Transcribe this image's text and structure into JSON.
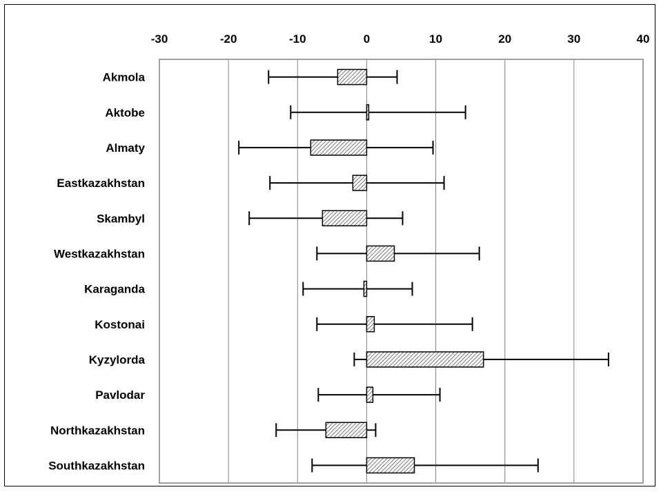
{
  "chart_data": {
    "type": "bar",
    "orientation": "horizontal",
    "title": "",
    "xlabel": "",
    "ylabel": "",
    "xlim": [
      -30,
      40
    ],
    "x_ticks": [
      -30,
      -20,
      -10,
      0,
      10,
      20,
      30,
      40
    ],
    "x_tick_labels": [
      "-30",
      "-20",
      "-10",
      "0",
      "10",
      "20",
      "30",
      "40"
    ],
    "x_axis_position": "top",
    "grid": "vertical",
    "legend": "none",
    "bar_fill": "diagonal-hatch",
    "categories": [
      "Akmola",
      "Aktobe",
      "Almaty",
      "Eastkazakhstan",
      "Skambyl",
      "Westkazakhstan",
      "Karaganda",
      "Kostonai",
      "Kyzylorda",
      "Pavlodar",
      "Northkazakhstan",
      "Southkazakhstan"
    ],
    "values": [
      -4.2,
      0.3,
      -8.1,
      -2.0,
      -6.4,
      4.0,
      -0.4,
      1.1,
      16.9,
      0.9,
      -5.9,
      6.9
    ],
    "error_low": [
      -14.2,
      -11.0,
      -18.5,
      -14.0,
      -17.0,
      -7.2,
      -9.2,
      -7.2,
      -1.8,
      -7.0,
      -13.1,
      -7.9
    ],
    "error_high": [
      4.4,
      14.3,
      9.6,
      11.2,
      5.2,
      16.3,
      6.6,
      15.3,
      35.0,
      10.6,
      1.3,
      24.8
    ],
    "colors": {
      "bar_stroke": "#000000",
      "hatch": "#555555",
      "grid": "#808080",
      "plot_border": "#a0a0a0"
    }
  }
}
